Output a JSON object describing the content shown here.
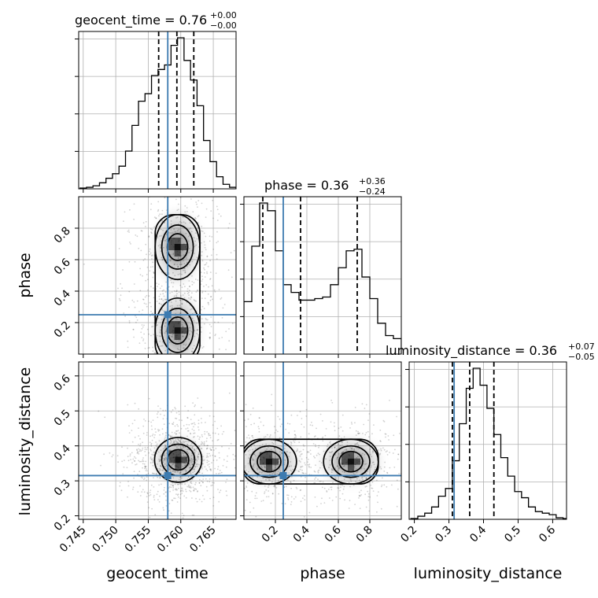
{
  "colors": {
    "truth": "#3d7bb0",
    "hist": "#000000",
    "grid": "#b0b0b0",
    "density": "#000000"
  },
  "chart_data": [
    {
      "type": "histogram",
      "parameter": "geocent_time",
      "title_name": "geocent_time",
      "title_value": "0.76",
      "title_plus": "+0.00",
      "title_minus": "−0.00",
      "truth": 0.758,
      "quantiles": [
        0.7566,
        0.7594,
        0.762
      ],
      "bin_edges": [
        0.7445,
        0.7455,
        0.7465,
        0.7475,
        0.7485,
        0.7495,
        0.7505,
        0.7515,
        0.7525,
        0.7535,
        0.7545,
        0.7555,
        0.7565,
        0.7575,
        0.7585,
        0.7595,
        0.7605,
        0.7615,
        0.7625,
        0.7635,
        0.7645,
        0.7655,
        0.7665,
        0.7675,
        0.7685
      ],
      "counts": [
        0.005,
        0.01,
        0.02,
        0.04,
        0.07,
        0.1,
        0.15,
        0.25,
        0.42,
        0.58,
        0.63,
        0.75,
        0.79,
        0.82,
        0.95,
        1.0,
        0.85,
        0.72,
        0.55,
        0.32,
        0.18,
        0.08,
        0.03,
        0.01
      ],
      "xlim": [
        0.7443,
        0.7685
      ],
      "xticks": [
        0.745,
        0.75,
        0.755,
        0.76,
        0.765
      ],
      "xticklabels": [
        "0.745",
        "0.750",
        "0.755",
        "0.760",
        "0.765"
      ],
      "xlabel": "geocent_time"
    },
    {
      "type": "histogram",
      "parameter": "phase",
      "title_name": "phase",
      "title_value": "0.36",
      "title_plus": "+0.36",
      "title_minus": "−0.24",
      "truth": 0.25,
      "quantiles": [
        0.12,
        0.36,
        0.72
      ],
      "bin_edges": [
        0.0,
        0.05,
        0.1,
        0.15,
        0.2,
        0.25,
        0.3,
        0.35,
        0.4,
        0.45,
        0.5,
        0.55,
        0.6,
        0.65,
        0.7,
        0.75,
        0.8,
        0.85,
        0.9,
        0.95,
        1.0
      ],
      "counts": [
        0.34,
        0.7,
        0.98,
        0.93,
        0.67,
        0.45,
        0.4,
        0.35,
        0.35,
        0.36,
        0.37,
        0.45,
        0.56,
        0.67,
        0.68,
        0.5,
        0.36,
        0.2,
        0.12,
        0.1
      ],
      "xlim": [
        0.0,
        1.0
      ],
      "xticks": [
        0.2,
        0.4,
        0.6,
        0.8
      ],
      "xticklabels": [
        "0.2",
        "0.4",
        "0.6",
        "0.8"
      ],
      "xlabel": "phase"
    },
    {
      "type": "histogram",
      "parameter": "luminosity_distance",
      "title_name": "luminosity_distance",
      "title_value": "0.36",
      "title_plus": "+0.07",
      "title_minus": "−0.05",
      "truth": 0.315,
      "quantiles": [
        0.31,
        0.36,
        0.43
      ],
      "bin_edges": [
        0.19,
        0.21,
        0.23,
        0.25,
        0.27,
        0.29,
        0.31,
        0.33,
        0.35,
        0.37,
        0.39,
        0.41,
        0.43,
        0.45,
        0.47,
        0.49,
        0.51,
        0.53,
        0.55,
        0.57,
        0.59,
        0.61,
        0.63,
        0.65
      ],
      "counts": [
        0.005,
        0.02,
        0.04,
        0.08,
        0.15,
        0.2,
        0.38,
        0.62,
        0.85,
        0.98,
        0.87,
        0.72,
        0.55,
        0.4,
        0.28,
        0.18,
        0.14,
        0.08,
        0.05,
        0.04,
        0.03,
        0.01,
        0.005
      ],
      "xlim": [
        0.185,
        0.64
      ],
      "xticks": [
        0.2,
        0.3,
        0.4,
        0.5,
        0.6
      ],
      "xticklabels": [
        "0.2",
        "0.3",
        "0.4",
        "0.5",
        "0.6"
      ],
      "xlabel": "luminosity_distance"
    },
    {
      "type": "scatter",
      "x": "geocent_time",
      "y": "phase",
      "ylabel": "phase",
      "yticks": [
        0.2,
        0.4,
        0.6,
        0.8
      ],
      "yticklabels": [
        "0.2",
        "0.4",
        "0.6",
        "0.8"
      ],
      "ylim": [
        0.0,
        1.0
      ],
      "truth": [
        0.758,
        0.25
      ],
      "modes": [
        [
          0.7595,
          0.15
        ],
        [
          0.7595,
          0.68
        ]
      ]
    },
    {
      "type": "scatter",
      "x": "geocent_time",
      "y": "luminosity_distance",
      "ylabel": "luminosity_distance",
      "yticks": [
        0.2,
        0.3,
        0.4,
        0.5,
        0.6
      ],
      "yticklabels": [
        "0.2",
        "0.3",
        "0.4",
        "0.5",
        "0.6"
      ],
      "ylim": [
        0.19,
        0.64
      ],
      "truth": [
        0.758,
        0.315
      ],
      "modes": [
        [
          0.7596,
          0.36
        ]
      ]
    },
    {
      "type": "scatter",
      "x": "phase",
      "y": "luminosity_distance",
      "truth": [
        0.25,
        0.315
      ],
      "modes": [
        [
          0.16,
          0.355
        ],
        [
          0.68,
          0.355
        ]
      ]
    }
  ]
}
